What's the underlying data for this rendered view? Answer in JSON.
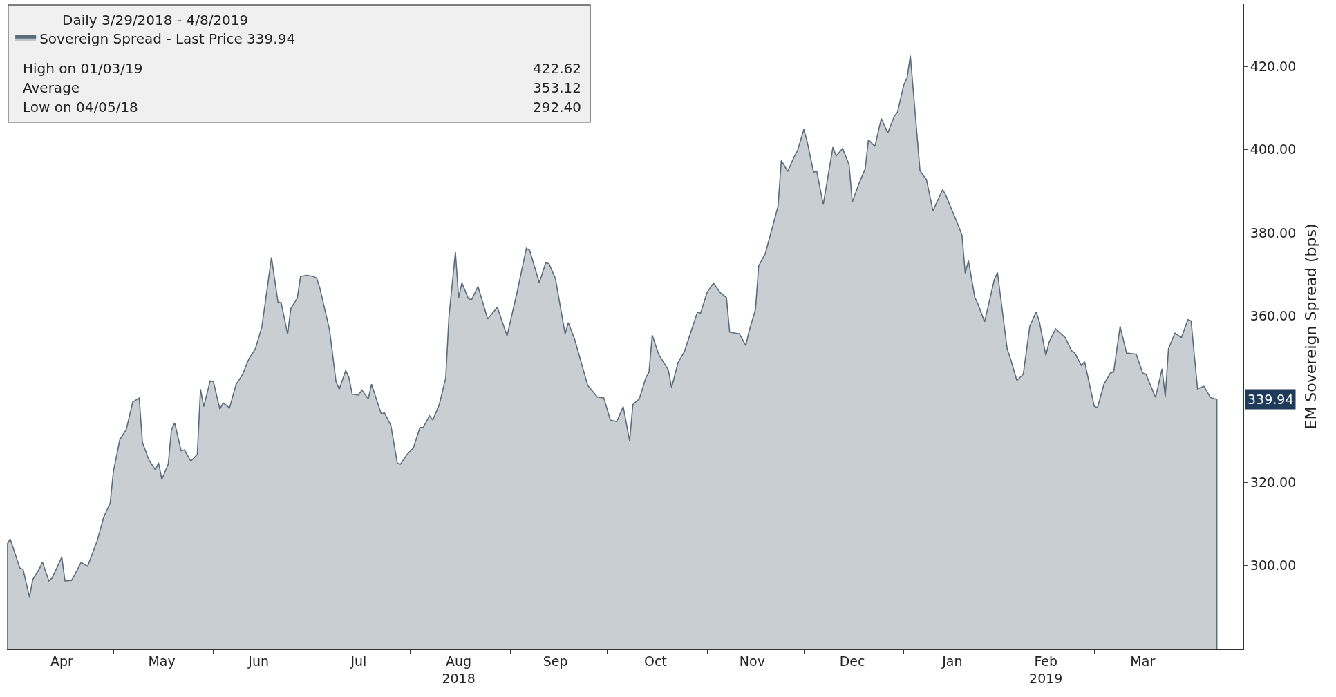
{
  "chart_data": {
    "type": "area",
    "legend_title": "Daily 3/29/2018 - 4/8/2019",
    "ylabel": "EM Sovereign Spread (bps)",
    "annotations": [
      "High on 01/03/19 422.62",
      "Average 353.12",
      "Low on 04/05/18 292.40",
      {
        "text": "339.94",
        "x": "2019-04-08",
        "y": 339.94
      }
    ],
    "legend": "top left",
    "grid": false,
    "xlim": [
      "2018-03-29",
      "2019-04-16"
    ],
    "xticks": [
      {
        "value": "2018-04-15",
        "label": "Apr"
      },
      {
        "value": "2018-05-16",
        "label": "May"
      },
      {
        "value": "2018-06-15",
        "label": "Jun"
      },
      {
        "value": "2018-07-16",
        "label": "Jul"
      },
      {
        "value": "2018-08-16",
        "label": "Aug\n2018"
      },
      {
        "value": "2018-09-15",
        "label": "Sep"
      },
      {
        "value": "2018-10-16",
        "label": "Oct"
      },
      {
        "value": "2018-11-15",
        "label": "Nov"
      },
      {
        "value": "2018-12-16",
        "label": "Dec"
      },
      {
        "value": "2019-01-16",
        "label": "Jan"
      },
      {
        "value": "2019-02-14",
        "label": "Feb\n2019"
      },
      {
        "value": "2019-03-16",
        "label": "Mar"
      },
      {
        "value": "2018-05-01",
        "label": null
      },
      {
        "value": "2018-06-01",
        "label": null
      },
      {
        "value": "2018-07-01",
        "label": null
      },
      {
        "value": "2018-08-01",
        "label": null
      },
      {
        "value": "2018-09-01",
        "label": null
      },
      {
        "value": "2018-10-01",
        "label": null
      },
      {
        "value": "2018-11-01",
        "label": null
      },
      {
        "value": "2018-12-01",
        "label": null
      },
      {
        "value": "2019-01-01",
        "label": null
      },
      {
        "value": "2019-02-01",
        "label": null
      },
      {
        "value": "2019-03-01",
        "label": null
      },
      {
        "value": "2019-04-01",
        "label": null
      }
    ],
    "ylim": [
      280,
      435
    ],
    "yticks": [
      {
        "value": 300,
        "label": "300.00"
      },
      {
        "value": 320,
        "label": "320.00"
      },
      {
        "value": 340,
        "label": null
      },
      {
        "value": 360,
        "label": "360.00"
      },
      {
        "value": 380,
        "label": "380.00"
      },
      {
        "value": 400,
        "label": "400.00"
      },
      {
        "value": 420,
        "label": "420.00"
      }
    ],
    "x": [
      "2018-03-29",
      "2018-03-30",
      "2018-04-02",
      "2018-04-03",
      "2018-04-05",
      "2018-04-06",
      "2018-04-08",
      "2018-04-09",
      "2018-04-11",
      "2018-04-12",
      "2018-04-15",
      "2018-04-16",
      "2018-04-18",
      "2018-04-19",
      "2018-04-21",
      "2018-04-23",
      "2018-04-26",
      "2018-04-28",
      "2018-04-30",
      "2018-05-01",
      "2018-05-03",
      "2018-05-05",
      "2018-05-07",
      "2018-05-09",
      "2018-05-10",
      "2018-05-12",
      "2018-05-14",
      "2018-05-15",
      "2018-05-16",
      "2018-05-18",
      "2018-05-19",
      "2018-05-20",
      "2018-05-22",
      "2018-05-23",
      "2018-05-25",
      "2018-05-27",
      "2018-05-28",
      "2018-05-29",
      "2018-05-31",
      "2018-06-01",
      "2018-06-03",
      "2018-06-04",
      "2018-06-06",
      "2018-06-08",
      "2018-06-10",
      "2018-06-12",
      "2018-06-14",
      "2018-06-16",
      "2018-06-19",
      "2018-06-21",
      "2018-06-22",
      "2018-06-24",
      "2018-06-25",
      "2018-06-27",
      "2018-06-28",
      "2018-06-30",
      "2018-07-02",
      "2018-07-03",
      "2018-07-04",
      "2018-07-07",
      "2018-07-09",
      "2018-07-10",
      "2018-07-12",
      "2018-07-13",
      "2018-07-14",
      "2018-07-16",
      "2018-07-17",
      "2018-07-19",
      "2018-07-20",
      "2018-07-23",
      "2018-07-24",
      "2018-07-26",
      "2018-07-28",
      "2018-07-29",
      "2018-07-31",
      "2018-08-02",
      "2018-08-04",
      "2018-08-05",
      "2018-08-07",
      "2018-08-08",
      "2018-08-10",
      "2018-08-12",
      "2018-08-13",
      "2018-08-15",
      "2018-08-16",
      "2018-08-17",
      "2018-08-19",
      "2018-08-20",
      "2018-08-22",
      "2018-08-25",
      "2018-08-28",
      "2018-08-31",
      "2018-09-03",
      "2018-09-06",
      "2018-09-07",
      "2018-09-10",
      "2018-09-12",
      "2018-09-13",
      "2018-09-15",
      "2018-09-18",
      "2018-09-19",
      "2018-09-21",
      "2018-09-25",
      "2018-09-28",
      "2018-09-30",
      "2018-10-02",
      "2018-10-04",
      "2018-10-06",
      "2018-10-08",
      "2018-10-09",
      "2018-10-11",
      "2018-10-13",
      "2018-10-14",
      "2018-10-15",
      "2018-10-17",
      "2018-10-20",
      "2018-10-21",
      "2018-10-23",
      "2018-10-25",
      "2018-10-29",
      "2018-10-30",
      "2018-11-01",
      "2018-11-03",
      "2018-11-05",
      "2018-11-07",
      "2018-11-08",
      "2018-11-11",
      "2018-11-13",
      "2018-11-14",
      "2018-11-16",
      "2018-11-17",
      "2018-11-19",
      "2018-11-23",
      "2018-11-24",
      "2018-11-26",
      "2018-11-28",
      "2018-11-29",
      "2018-12-01",
      "2018-12-02",
      "2018-12-04",
      "2018-12-05",
      "2018-12-07",
      "2018-12-10",
      "2018-12-11",
      "2018-12-13",
      "2018-12-15",
      "2018-12-16",
      "2018-12-18",
      "2018-12-20",
      "2018-12-21",
      "2018-12-23",
      "2018-12-25",
      "2018-12-27",
      "2018-12-29",
      "2018-12-30",
      "2019-01-01",
      "2019-01-02",
      "2019-01-03",
      "2019-01-06",
      "2019-01-08",
      "2019-01-10",
      "2019-01-13",
      "2019-01-14",
      "2019-01-18",
      "2019-01-19",
      "2019-01-20",
      "2019-01-21",
      "2019-01-23",
      "2019-01-24",
      "2019-01-26",
      "2019-01-29",
      "2019-01-30",
      "2019-02-02",
      "2019-02-03",
      "2019-02-05",
      "2019-02-07",
      "2019-02-09",
      "2019-02-11",
      "2019-02-12",
      "2019-02-14",
      "2019-02-15",
      "2019-02-17",
      "2019-02-20",
      "2019-02-22",
      "2019-02-23",
      "2019-02-25",
      "2019-02-26",
      "2019-03-01",
      "2019-03-02",
      "2019-03-04",
      "2019-03-06",
      "2019-03-07",
      "2019-03-09",
      "2019-03-11",
      "2019-03-14",
      "2019-03-16",
      "2019-03-17",
      "2019-03-20",
      "2019-03-22",
      "2019-03-23",
      "2019-03-24",
      "2019-03-26",
      "2019-03-28",
      "2019-03-30",
      "2019-03-31",
      "2019-04-02",
      "2019-04-04",
      "2019-04-06",
      "2019-04-08"
    ],
    "series": [
      {
        "name": "Sovereign Spread - Last Price 339.94",
        "color": "#5c6b7a",
        "values": [
          305,
          306.4,
          299.4,
          299.1,
          292.4,
          296.6,
          299.1,
          300.8,
          296.3,
          297,
          302,
          296.3,
          296.4,
          297.7,
          300.8,
          299.8,
          306,
          311.6,
          315,
          322.6,
          330.3,
          332.7,
          339.3,
          340.3,
          329.6,
          325.4,
          323,
          324.7,
          320.7,
          324.4,
          332.7,
          334.3,
          327.6,
          327.8,
          325.1,
          326.7,
          342.4,
          338.2,
          344.4,
          344.2,
          337.6,
          339.1,
          337.9,
          343.5,
          345.9,
          349.7,
          352.1,
          357.3,
          374.1,
          363.4,
          363.2,
          355.6,
          361.8,
          364.3,
          369.5,
          369.8,
          369.5,
          369.1,
          366.7,
          356.6,
          344.2,
          342.4,
          346.9,
          345.2,
          341.2,
          341,
          342.2,
          340.1,
          343.6,
          336.5,
          336.7,
          333.7,
          324.6,
          324.4,
          326.7,
          328.3,
          333.2,
          333.2,
          336,
          335,
          338.7,
          345.1,
          359.8,
          375.4,
          364.4,
          368,
          364.2,
          363.9,
          367.1,
          359.3,
          362.1,
          355.2,
          365.3,
          376.3,
          375.8,
          368,
          372.8,
          372.6,
          369,
          355.7,
          358.4,
          354.3,
          343.3,
          340.5,
          340.3,
          335,
          334.6,
          338.2,
          330,
          338.7,
          340.1,
          345.1,
          346.5,
          355.4,
          350.8,
          347,
          342.8,
          348.8,
          351.5,
          360.9,
          360.7,
          365.7,
          367.9,
          365.7,
          364.4,
          356.1,
          355.7,
          352.9,
          356.3,
          361.6,
          372.1,
          374.9,
          386.4,
          397.4,
          394.8,
          398.3,
          399.7,
          404.9,
          402,
          394.6,
          394.8,
          386.8,
          400.6,
          398.5,
          400.3,
          396.4,
          387.4,
          391.7,
          395.4,
          402.4,
          400.8,
          407.5,
          404,
          408,
          409,
          415.7,
          417.3,
          422.62,
          394.9,
          392.8,
          385.3,
          390.4,
          389,
          381.5,
          379.4,
          370.3,
          373.3,
          364.4,
          362.8,
          358.6,
          368.7,
          370.5,
          352.1,
          349.8,
          344.5,
          346,
          357.5,
          361,
          358.6,
          350.5,
          353.7,
          356.9,
          354.8,
          351.6,
          351.1,
          348.1,
          349,
          338.3,
          338,
          343.6,
          346.3,
          346.5,
          357.5,
          351.1,
          350.8,
          346.3,
          346,
          340.4,
          347.3,
          340.6,
          352.1,
          355.9,
          354.8,
          359.1,
          358.8,
          342.5,
          343.1,
          340.4,
          339.94
        ]
      }
    ]
  }
}
